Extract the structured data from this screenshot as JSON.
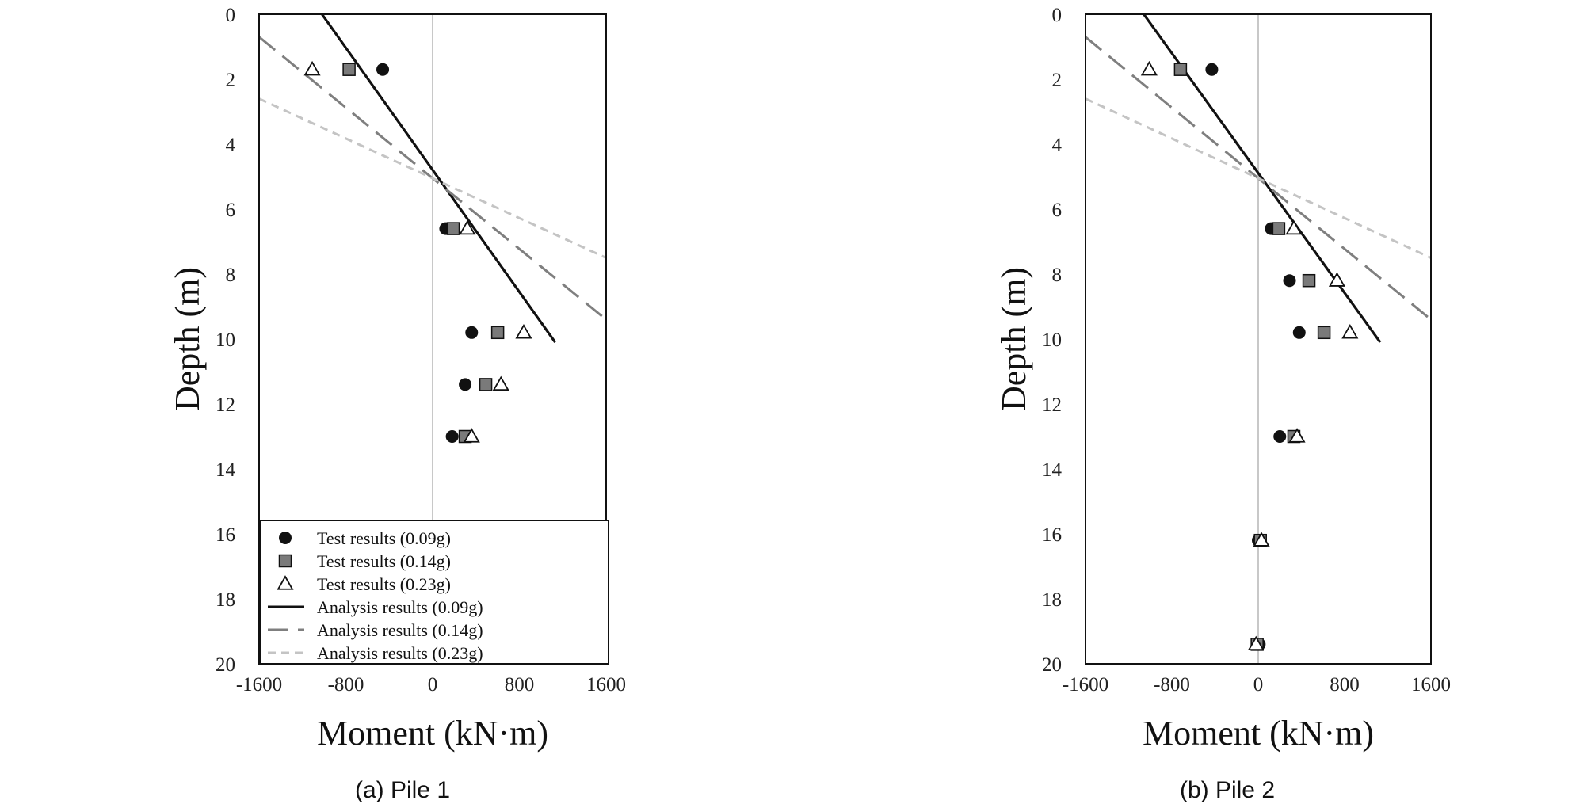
{
  "chart_data": [
    {
      "type": "scatter",
      "caption": "(a) Pile 1",
      "xlabel": "Moment (kN·m)",
      "ylabel": "Depth (m)",
      "xlim": [
        -1600,
        1600
      ],
      "ylim": [
        0,
        20
      ],
      "y_inverted": true,
      "xticks": [
        -1600,
        -800,
        0,
        800,
        1600
      ],
      "yticks": [
        0,
        2,
        4,
        6,
        8,
        10,
        12,
        14,
        16,
        18,
        20
      ],
      "legend": "lower-left",
      "test_series": [
        {
          "name": "Test results (0.09g)",
          "marker": "circle",
          "color": "#111111",
          "points": [
            [
              -460,
              1.7
            ],
            [
              120,
              6.6
            ],
            [
              360,
              9.8
            ],
            [
              300,
              11.4
            ],
            [
              180,
              13.0
            ]
          ]
        },
        {
          "name": "Test results (0.14g)",
          "marker": "square",
          "color": "#7a7a7a",
          "points": [
            [
              -770,
              1.7
            ],
            [
              190,
              6.6
            ],
            [
              600,
              9.8
            ],
            [
              490,
              11.4
            ],
            [
              300,
              13.0
            ]
          ]
        },
        {
          "name": "Test results (0.23g)",
          "marker": "triangle",
          "color": "#ffffff",
          "points": [
            [
              -1110,
              1.7
            ],
            [
              320,
              6.6
            ],
            [
              840,
              9.8
            ],
            [
              630,
              11.4
            ],
            [
              360,
              13.0
            ]
          ]
        }
      ],
      "analysis_series": [
        {
          "name": "Analysis results (0.09g)",
          "dash": "solid",
          "color": "#111111",
          "points": [
            [
              -1020,
              0
            ],
            [
              1130,
              10.1
            ]
          ]
        },
        {
          "name": "Analysis results (0.14g)",
          "dash": "long-dash",
          "color": "#7f7f7f",
          "points": [
            [
              -1600,
              0.7
            ],
            [
              1600,
              9.4
            ]
          ]
        },
        {
          "name": "Analysis results (0.23g)",
          "dash": "short-dash",
          "color": "#c4c4c4",
          "points": [
            [
              -1600,
              2.6
            ],
            [
              1600,
              7.5
            ]
          ]
        }
      ]
    },
    {
      "type": "scatter",
      "caption": "(b) Pile 2",
      "xlabel": "Moment (kN·m)",
      "ylabel": "Depth (m)",
      "xlim": [
        -1600,
        1600
      ],
      "ylim": [
        0,
        20
      ],
      "y_inverted": true,
      "xticks": [
        -1600,
        -800,
        0,
        800,
        1600
      ],
      "yticks": [
        0,
        2,
        4,
        6,
        8,
        10,
        12,
        14,
        16,
        18,
        20
      ],
      "test_series": [
        {
          "name": "Test results (0.09g)",
          "marker": "circle",
          "color": "#111111",
          "points": [
            [
              -430,
              1.7
            ],
            [
              120,
              6.6
            ],
            [
              290,
              8.2
            ],
            [
              380,
              9.8
            ],
            [
              200,
              13.0
            ],
            [
              0,
              16.2
            ],
            [
              10,
              19.4
            ]
          ]
        },
        {
          "name": "Test results (0.14g)",
          "marker": "square",
          "color": "#7a7a7a",
          "points": [
            [
              -720,
              1.7
            ],
            [
              190,
              6.6
            ],
            [
              470,
              8.2
            ],
            [
              610,
              9.8
            ],
            [
              330,
              13.0
            ],
            [
              20,
              16.2
            ],
            [
              -10,
              19.4
            ]
          ]
        },
        {
          "name": "Test results (0.23g)",
          "marker": "triangle",
          "color": "#ffffff",
          "points": [
            [
              -1010,
              1.7
            ],
            [
              330,
              6.6
            ],
            [
              730,
              8.2
            ],
            [
              850,
              9.8
            ],
            [
              360,
              13.0
            ],
            [
              30,
              16.2
            ],
            [
              -20,
              19.4
            ]
          ]
        }
      ],
      "analysis_series": [
        {
          "name": "Analysis results (0.09g)",
          "dash": "solid",
          "color": "#111111",
          "points": [
            [
              -1060,
              0
            ],
            [
              1130,
              10.1
            ]
          ]
        },
        {
          "name": "Analysis results (0.14g)",
          "dash": "long-dash",
          "color": "#7f7f7f",
          "points": [
            [
              -1600,
              0.7
            ],
            [
              1600,
              9.4
            ]
          ]
        },
        {
          "name": "Analysis results (0.23g)",
          "dash": "short-dash",
          "color": "#c4c4c4",
          "points": [
            [
              -1600,
              2.6
            ],
            [
              1600,
              7.5
            ]
          ]
        }
      ]
    }
  ]
}
